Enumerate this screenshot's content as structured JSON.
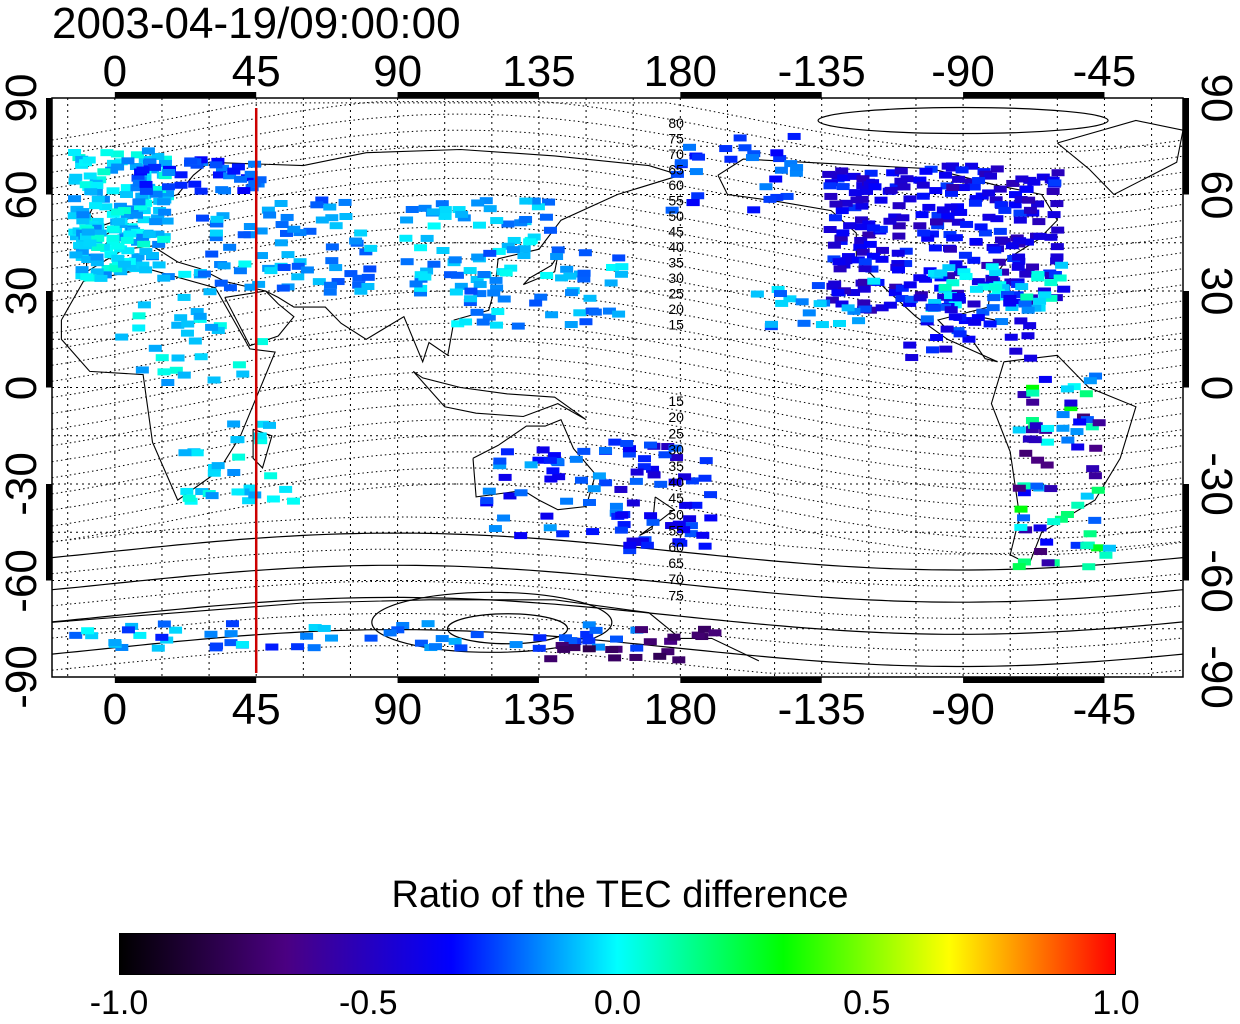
{
  "title": "2003-04-19/09:00:00",
  "axes": {
    "top_ticks": [
      "0",
      "45",
      "90",
      "135",
      "180",
      "-135",
      "-90",
      "-45"
    ],
    "bottom_ticks": [
      "0",
      "45",
      "90",
      "135",
      "180",
      "-135",
      "-90",
      "-45"
    ],
    "left_ticks": [
      "90",
      "60",
      "30",
      "0",
      "-30",
      "-60",
      "-90"
    ],
    "right_ticks": [
      "90",
      "60",
      "30",
      "0",
      "-30",
      "-60",
      "-90"
    ]
  },
  "map": {
    "longitude_range": [
      -20,
      340
    ],
    "latitude_range": [
      -90,
      90
    ],
    "marked_longitude": 45,
    "marked_longitude_color": "#cc0000",
    "gridlines": "dotted",
    "contour_labels_north": [
      "80",
      "75",
      "70",
      "65",
      "60",
      "55",
      "50",
      "45",
      "40",
      "35",
      "30",
      "25",
      "20",
      "15"
    ],
    "contour_labels_south": [
      "15",
      "20",
      "25",
      "30",
      "35",
      "40",
      "45",
      "50",
      "55",
      "60",
      "65",
      "70",
      "75"
    ]
  },
  "colorbar": {
    "title": "Ratio of the TEC difference",
    "ticks": [
      "-1.0",
      "-0.5",
      "0.0",
      "0.5",
      "1.0"
    ],
    "range": [
      -1.0,
      1.0
    ],
    "colors": [
      "#000000",
      "#4b0082",
      "#0000ff",
      "#00ffff",
      "#00ff00",
      "#ffff00",
      "#ff0000"
    ]
  }
}
